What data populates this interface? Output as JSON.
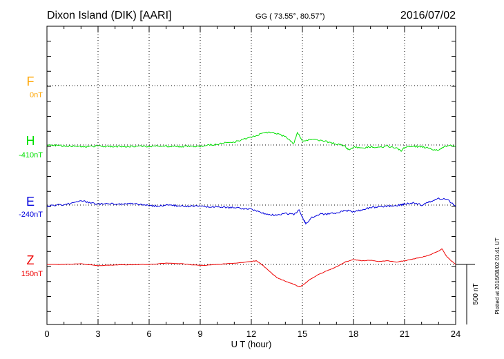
{
  "header": {
    "station": "Dixon Island (DIK)  [AARI]",
    "coords": "GG ( 73.55°,  80.57°)",
    "date": "2016/07/02"
  },
  "side_note": "Plotted at 2016/08/02 01:41 UT",
  "chart_data": {
    "type": "line",
    "xlabel": "U T (hour)",
    "xlim": [
      0,
      24
    ],
    "xticks": [
      "0",
      "3",
      "6",
      "9",
      "12",
      "15",
      "18",
      "21",
      "24"
    ],
    "scale_bar": {
      "value": 500,
      "label": "500 nT"
    },
    "colors": {
      "F": "#ffa500",
      "H": "#00e000",
      "E": "#0000dd",
      "Z": "#ee0000"
    },
    "series": [
      {
        "name": "F",
        "baseline_label": "0nT",
        "points": []
      },
      {
        "name": "H",
        "baseline_label": "-410nT",
        "points": [
          [
            0,
            -5
          ],
          [
            0.5,
            -3
          ],
          [
            1,
            -8
          ],
          [
            1.5,
            -10
          ],
          [
            2,
            -15
          ],
          [
            2.5,
            -12
          ],
          [
            3,
            -8
          ],
          [
            3.5,
            -12
          ],
          [
            4,
            -14
          ],
          [
            4.5,
            -11
          ],
          [
            5,
            -13
          ],
          [
            5.5,
            -10
          ],
          [
            6,
            -12
          ],
          [
            6.5,
            -6
          ],
          [
            7,
            -8
          ],
          [
            7.5,
            -11
          ],
          [
            8,
            -12
          ],
          [
            8.5,
            -9
          ],
          [
            9,
            -10
          ],
          [
            9.5,
            0
          ],
          [
            10,
            5
          ],
          [
            10.5,
            20
          ],
          [
            11,
            25
          ],
          [
            11.5,
            45
          ],
          [
            12,
            65
          ],
          [
            12.5,
            90
          ],
          [
            13,
            105
          ],
          [
            13.5,
            95
          ],
          [
            14,
            70
          ],
          [
            14.5,
            10
          ],
          [
            14.7,
            105
          ],
          [
            15,
            35
          ],
          [
            15.5,
            45
          ],
          [
            16,
            40
          ],
          [
            16.5,
            25
          ],
          [
            17,
            10
          ],
          [
            17.5,
            -10
          ],
          [
            17.7,
            -40
          ],
          [
            18,
            -20
          ],
          [
            18.5,
            -25
          ],
          [
            19,
            -15
          ],
          [
            19.5,
            -20
          ],
          [
            20,
            -10
          ],
          [
            20.5,
            -25
          ],
          [
            20.8,
            -50
          ],
          [
            21,
            -20
          ],
          [
            21.5,
            -10
          ],
          [
            22,
            -15
          ],
          [
            22.5,
            -30
          ],
          [
            23,
            -50
          ],
          [
            23.2,
            -20
          ],
          [
            23.5,
            -5
          ],
          [
            24,
            -8
          ]
        ]
      },
      {
        "name": "E",
        "baseline_label": "-240nT",
        "points": [
          [
            0,
            -10
          ],
          [
            0.5,
            0
          ],
          [
            1,
            5
          ],
          [
            1.5,
            15
          ],
          [
            2,
            40
          ],
          [
            2.5,
            20
          ],
          [
            3,
            5
          ],
          [
            3.5,
            15
          ],
          [
            4,
            10
          ],
          [
            4.5,
            5
          ],
          [
            5,
            15
          ],
          [
            5.5,
            5
          ],
          [
            6,
            -5
          ],
          [
            6.5,
            -10
          ],
          [
            7,
            0
          ],
          [
            7.5,
            -5
          ],
          [
            8,
            -8
          ],
          [
            8.5,
            -10
          ],
          [
            9,
            -10
          ],
          [
            9.5,
            -20
          ],
          [
            10,
            -15
          ],
          [
            10.5,
            -20
          ],
          [
            11,
            -20
          ],
          [
            11.5,
            -30
          ],
          [
            12,
            -35
          ],
          [
            12.5,
            -60
          ],
          [
            13,
            -80
          ],
          [
            13.5,
            -85
          ],
          [
            14,
            -70
          ],
          [
            14.5,
            -80
          ],
          [
            14.8,
            -40
          ],
          [
            15,
            -100
          ],
          [
            15.2,
            -155
          ],
          [
            15.5,
            -110
          ],
          [
            16,
            -75
          ],
          [
            16.5,
            -75
          ],
          [
            17,
            -65
          ],
          [
            17.5,
            -45
          ],
          [
            18,
            -55
          ],
          [
            18.5,
            -40
          ],
          [
            19,
            -20
          ],
          [
            19.5,
            -15
          ],
          [
            20,
            -10
          ],
          [
            20.5,
            -5
          ],
          [
            20.8,
            0
          ],
          [
            21,
            10
          ],
          [
            21.5,
            20
          ],
          [
            22,
            0
          ],
          [
            22.5,
            30
          ],
          [
            23,
            55
          ],
          [
            23.5,
            45
          ],
          [
            24,
            -10
          ]
        ]
      },
      {
        "name": "Z",
        "baseline_label": "150nT",
        "points": [
          [
            0,
            0
          ],
          [
            1,
            0
          ],
          [
            2,
            5
          ],
          [
            3,
            -10
          ],
          [
            4,
            -5
          ],
          [
            5,
            -2
          ],
          [
            6,
            0
          ],
          [
            7,
            10
          ],
          [
            8,
            5
          ],
          [
            9,
            -10
          ],
          [
            10,
            0
          ],
          [
            11,
            10
          ],
          [
            12,
            25
          ],
          [
            12.3,
            30
          ],
          [
            12.7,
            -10
          ],
          [
            13,
            -50
          ],
          [
            13.5,
            -110
          ],
          [
            14,
            -140
          ],
          [
            14.5,
            -165
          ],
          [
            14.8,
            -185
          ],
          [
            15,
            -175
          ],
          [
            15.5,
            -120
          ],
          [
            16,
            -80
          ],
          [
            16.5,
            -50
          ],
          [
            17,
            -20
          ],
          [
            17.5,
            20
          ],
          [
            18,
            40
          ],
          [
            18.5,
            30
          ],
          [
            19,
            35
          ],
          [
            19.5,
            25
          ],
          [
            20,
            30
          ],
          [
            20.5,
            20
          ],
          [
            21,
            30
          ],
          [
            21.5,
            45
          ],
          [
            22,
            60
          ],
          [
            22.5,
            80
          ],
          [
            23,
            110
          ],
          [
            23.2,
            130
          ],
          [
            23.5,
            60
          ],
          [
            24,
            0
          ]
        ]
      }
    ]
  }
}
